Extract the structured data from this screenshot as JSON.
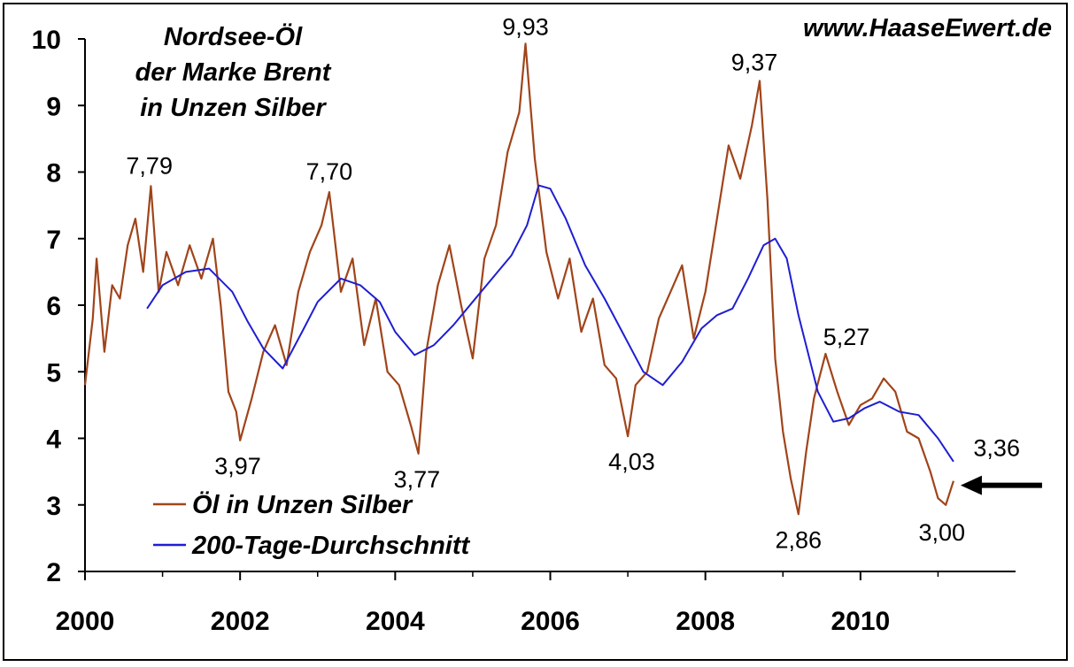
{
  "source_label": "www.HaaseEwert.de",
  "chart_data": {
    "type": "line",
    "title_lines": [
      "Nordsee-Öl",
      "der Marke Brent",
      "in Unzen Silber"
    ],
    "xlabel": "",
    "ylabel": "",
    "xlim": [
      2000,
      2012
    ],
    "ylim": [
      2,
      10
    ],
    "x_ticks": [
      2000,
      2002,
      2004,
      2006,
      2008,
      2010
    ],
    "x_tick_labels": [
      "2000",
      "2002",
      "2004",
      "2006",
      "2008",
      "2010"
    ],
    "y_ticks": [
      2,
      3,
      4,
      5,
      6,
      7,
      8,
      9,
      10
    ],
    "y_tick_labels": [
      "2",
      "3",
      "4",
      "5",
      "6",
      "7",
      "8",
      "9",
      "10"
    ],
    "grid": false,
    "legend_position": "bottom-left",
    "series": [
      {
        "name": "Öl in Unzen Silber",
        "color": "#A0441A",
        "x": [
          2000.0,
          2000.1,
          2000.15,
          2000.25,
          2000.35,
          2000.45,
          2000.55,
          2000.65,
          2000.75,
          2000.85,
          2000.95,
          2001.05,
          2001.2,
          2001.35,
          2001.5,
          2001.65,
          2001.75,
          2001.85,
          2001.95,
          2002.0,
          2002.15,
          2002.3,
          2002.45,
          2002.6,
          2002.75,
          2002.9,
          2003.05,
          2003.15,
          2003.3,
          2003.45,
          2003.6,
          2003.75,
          2003.9,
          2004.05,
          2004.2,
          2004.3,
          2004.4,
          2004.55,
          2004.7,
          2004.85,
          2005.0,
          2005.15,
          2005.3,
          2005.45,
          2005.6,
          2005.68,
          2005.8,
          2005.95,
          2006.1,
          2006.25,
          2006.4,
          2006.55,
          2006.7,
          2006.85,
          2007.0,
          2007.1,
          2007.25,
          2007.4,
          2007.55,
          2007.7,
          2007.85,
          2008.0,
          2008.15,
          2008.3,
          2008.45,
          2008.6,
          2008.7,
          2008.8,
          2008.9,
          2009.0,
          2009.1,
          2009.2,
          2009.3,
          2009.4,
          2009.55,
          2009.7,
          2009.85,
          2010.0,
          2010.15,
          2010.3,
          2010.45,
          2010.6,
          2010.75,
          2010.9,
          2011.0,
          2011.1,
          2011.2
        ],
        "y": [
          4.8,
          5.8,
          6.7,
          5.3,
          6.3,
          6.1,
          6.9,
          7.3,
          6.5,
          7.79,
          6.2,
          6.8,
          6.3,
          6.9,
          6.4,
          7.0,
          6.0,
          4.7,
          4.4,
          3.97,
          4.6,
          5.3,
          5.7,
          5.1,
          6.2,
          6.8,
          7.2,
          7.7,
          6.2,
          6.7,
          5.4,
          6.1,
          5.0,
          4.8,
          4.2,
          3.77,
          5.3,
          6.3,
          6.9,
          6.0,
          5.2,
          6.7,
          7.2,
          8.3,
          8.9,
          9.93,
          8.2,
          6.8,
          6.1,
          6.7,
          5.6,
          6.1,
          5.1,
          4.9,
          4.03,
          4.8,
          5.0,
          5.8,
          6.2,
          6.6,
          5.5,
          6.2,
          7.3,
          8.4,
          7.9,
          8.7,
          9.37,
          7.6,
          5.2,
          4.1,
          3.4,
          2.86,
          3.8,
          4.6,
          5.27,
          4.7,
          4.2,
          4.5,
          4.6,
          4.9,
          4.7,
          4.1,
          4.0,
          3.5,
          3.1,
          3.0,
          3.36
        ]
      },
      {
        "name": "200-Tage-Durchschnitt",
        "color": "#1E1ED2",
        "x": [
          2000.8,
          2001.0,
          2001.3,
          2001.6,
          2001.9,
          2002.1,
          2002.3,
          2002.55,
          2002.8,
          2003.0,
          2003.3,
          2003.55,
          2003.8,
          2004.0,
          2004.25,
          2004.5,
          2004.75,
          2005.0,
          2005.25,
          2005.5,
          2005.7,
          2005.85,
          2006.0,
          2006.2,
          2006.45,
          2006.7,
          2006.95,
          2007.2,
          2007.45,
          2007.7,
          2007.95,
          2008.15,
          2008.35,
          2008.55,
          2008.75,
          2008.9,
          2009.05,
          2009.2,
          2009.45,
          2009.65,
          2009.85,
          2010.05,
          2010.25,
          2010.5,
          2010.75,
          2011.0,
          2011.2
        ],
        "y": [
          5.95,
          6.3,
          6.5,
          6.55,
          6.2,
          5.75,
          5.35,
          5.05,
          5.6,
          6.05,
          6.4,
          6.3,
          6.05,
          5.6,
          5.25,
          5.4,
          5.7,
          6.05,
          6.4,
          6.75,
          7.2,
          7.8,
          7.75,
          7.3,
          6.6,
          6.1,
          5.55,
          5.0,
          4.8,
          5.15,
          5.65,
          5.85,
          5.95,
          6.4,
          6.9,
          7.0,
          6.7,
          5.85,
          4.7,
          4.25,
          4.3,
          4.45,
          4.55,
          4.4,
          4.35,
          4.0,
          3.65
        ]
      }
    ],
    "annotations": [
      {
        "text": "7,79",
        "x": 2000.83,
        "y": 7.79
      },
      {
        "text": "3,97",
        "x": 2001.97,
        "y": 3.97
      },
      {
        "text": "7,70",
        "x": 2003.15,
        "y": 7.7
      },
      {
        "text": "3,77",
        "x": 2004.28,
        "y": 3.77
      },
      {
        "text": "9,93",
        "x": 2005.68,
        "y": 9.93
      },
      {
        "text": "4,03",
        "x": 2007.05,
        "y": 4.03
      },
      {
        "text": "9,37",
        "x": 2008.7,
        "y": 9.37
      },
      {
        "text": "2,86",
        "x": 2009.2,
        "y": 2.86
      },
      {
        "text": "5,27",
        "x": 2009.5,
        "y": 5.27
      },
      {
        "text": "3,00",
        "x": 2011.05,
        "y": 3.0
      },
      {
        "text": "3,36",
        "x": 2011.3,
        "y": 3.36
      }
    ],
    "arrow_target": {
      "x": 2011.2,
      "y": 3.36
    }
  }
}
